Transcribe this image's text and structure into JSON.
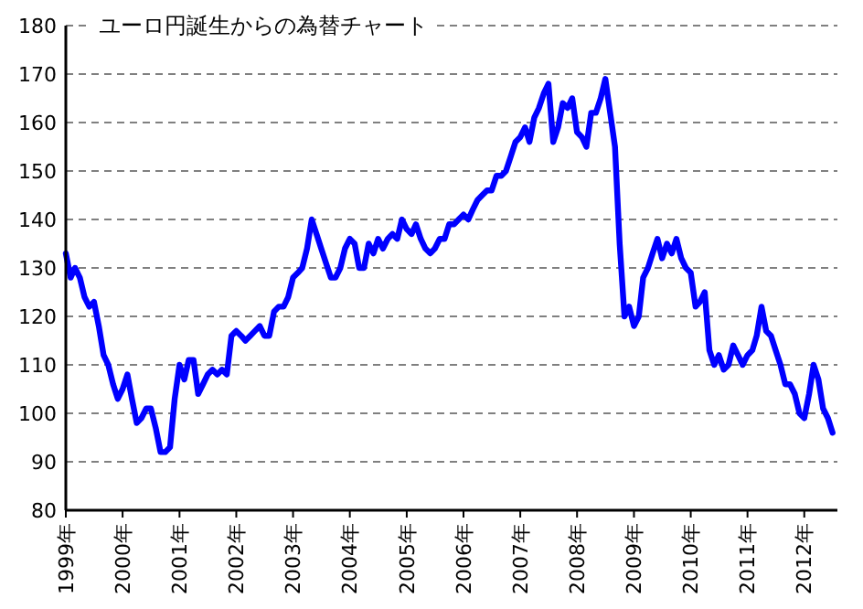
{
  "chart_data": {
    "type": "line",
    "title": "ユーロ円誕生からの為替チャート",
    "x": [
      "1999-01",
      "1999-02",
      "1999-03",
      "1999-04",
      "1999-05",
      "1999-06",
      "1999-07",
      "1999-08",
      "1999-09",
      "1999-10",
      "1999-11",
      "1999-12",
      "2000-01",
      "2000-02",
      "2000-03",
      "2000-04",
      "2000-05",
      "2000-06",
      "2000-07",
      "2000-08",
      "2000-09",
      "2000-10",
      "2000-11",
      "2000-12",
      "2001-01",
      "2001-02",
      "2001-03",
      "2001-04",
      "2001-05",
      "2001-06",
      "2001-07",
      "2001-08",
      "2001-09",
      "2001-10",
      "2001-11",
      "2001-12",
      "2002-01",
      "2002-02",
      "2002-03",
      "2002-04",
      "2002-05",
      "2002-06",
      "2002-07",
      "2002-08",
      "2002-09",
      "2002-10",
      "2002-11",
      "2002-12",
      "2003-01",
      "2003-02",
      "2003-03",
      "2003-04",
      "2003-05",
      "2003-06",
      "2003-07",
      "2003-08",
      "2003-09",
      "2003-10",
      "2003-11",
      "2003-12",
      "2004-01",
      "2004-02",
      "2004-03",
      "2004-04",
      "2004-05",
      "2004-06",
      "2004-07",
      "2004-08",
      "2004-09",
      "2004-10",
      "2004-11",
      "2004-12",
      "2005-01",
      "2005-02",
      "2005-03",
      "2005-04",
      "2005-05",
      "2005-06",
      "2005-07",
      "2005-08",
      "2005-09",
      "2005-10",
      "2005-11",
      "2005-12",
      "2006-01",
      "2006-02",
      "2006-03",
      "2006-04",
      "2006-05",
      "2006-06",
      "2006-07",
      "2006-08",
      "2006-09",
      "2006-10",
      "2006-11",
      "2006-12",
      "2007-01",
      "2007-02",
      "2007-03",
      "2007-04",
      "2007-05",
      "2007-06",
      "2007-07",
      "2007-08",
      "2007-09",
      "2007-10",
      "2007-11",
      "2007-12",
      "2008-01",
      "2008-02",
      "2008-03",
      "2008-04",
      "2008-05",
      "2008-06",
      "2008-07",
      "2008-08",
      "2008-09",
      "2008-10",
      "2008-11",
      "2008-12",
      "2009-01",
      "2009-02",
      "2009-03",
      "2009-04",
      "2009-05",
      "2009-06",
      "2009-07",
      "2009-08",
      "2009-09",
      "2009-10",
      "2009-11",
      "2009-12",
      "2010-01",
      "2010-02",
      "2010-03",
      "2010-04",
      "2010-05",
      "2010-06",
      "2010-07",
      "2010-08",
      "2010-09",
      "2010-10",
      "2010-11",
      "2010-12",
      "2011-01",
      "2011-02",
      "2011-03",
      "2011-04",
      "2011-05",
      "2011-06",
      "2011-07",
      "2011-08",
      "2011-09",
      "2011-10",
      "2011-11",
      "2011-12",
      "2012-01",
      "2012-02",
      "2012-03",
      "2012-04",
      "2012-05",
      "2012-06",
      "2012-07"
    ],
    "series": [
      {
        "color": "#0000ff",
        "values": [
          133,
          128,
          130,
          128,
          124,
          122,
          123,
          118,
          112,
          110,
          106,
          103,
          105,
          108,
          103,
          98,
          99,
          101,
          101,
          97,
          92,
          92,
          93,
          103,
          110,
          107,
          111,
          111,
          104,
          106,
          108,
          109,
          108,
          109,
          108,
          116,
          117,
          116,
          115,
          116,
          117,
          118,
          116,
          116,
          121,
          122,
          122,
          124,
          128,
          129,
          130,
          134,
          140,
          137,
          134,
          131,
          128,
          128,
          130,
          134,
          136,
          135,
          130,
          130,
          135,
          133,
          136,
          134,
          136,
          137,
          136,
          140,
          138,
          137,
          139,
          136,
          134,
          133,
          134,
          136,
          136,
          139,
          139,
          140,
          141,
          140,
          142,
          144,
          145,
          146,
          146,
          149,
          149,
          150,
          153,
          156,
          157,
          159,
          156,
          161,
          163,
          166,
          168,
          156,
          159,
          164,
          163,
          165,
          158,
          157,
          155,
          162,
          162,
          165,
          169,
          162,
          155,
          135,
          120,
          122,
          118,
          120,
          128,
          130,
          133,
          136,
          132,
          135,
          133,
          136,
          132,
          130,
          129,
          122,
          123,
          125,
          113,
          110,
          112,
          109,
          110,
          114,
          112,
          110,
          112,
          113,
          116,
          122,
          117,
          116,
          113,
          110,
          106,
          106,
          104,
          100,
          99,
          104,
          110,
          107,
          101,
          99,
          96
        ]
      }
    ],
    "xlim": [
      "1999-01",
      "2012-08"
    ],
    "xticks": [
      {
        "value": "1999",
        "label": "1999年"
      },
      {
        "value": "2000",
        "label": "2000年"
      },
      {
        "value": "2001",
        "label": "2001年"
      },
      {
        "value": "2002",
        "label": "2002年"
      },
      {
        "value": "2003",
        "label": "2003年"
      },
      {
        "value": "2004",
        "label": "2004年"
      },
      {
        "value": "2005",
        "label": "2005年"
      },
      {
        "value": "2006",
        "label": "2006年"
      },
      {
        "value": "2007",
        "label": "2007年"
      },
      {
        "value": "2008",
        "label": "2008年"
      },
      {
        "value": "2009",
        "label": "2009年"
      },
      {
        "value": "2010",
        "label": "2010年"
      },
      {
        "value": "2011",
        "label": "2011年"
      },
      {
        "value": "2012",
        "label": "2012年"
      }
    ],
    "ylim": [
      80,
      180
    ],
    "yticks": [
      80,
      90,
      100,
      110,
      120,
      130,
      140,
      150,
      160,
      170,
      180
    ],
    "grid": "y",
    "marker": "none",
    "line_style": "solid"
  }
}
